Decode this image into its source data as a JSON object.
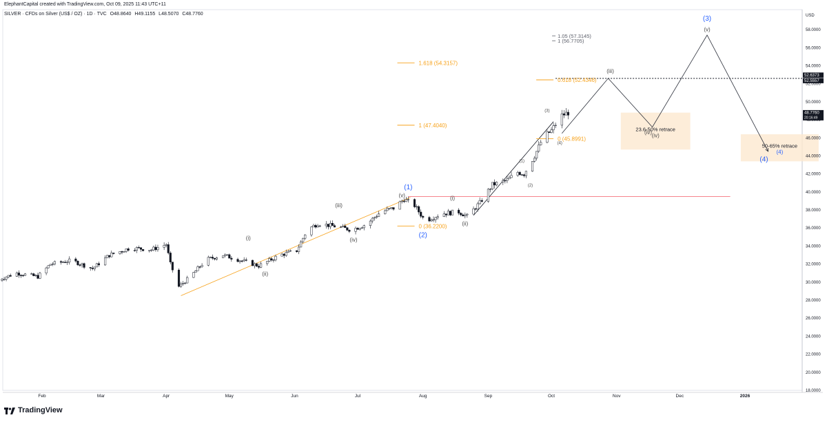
{
  "header": {
    "credit": "ElephantCapital created with TradingView.com, Oct 09, 2025 11:43 UTC+11",
    "symbol": "SILVER · CFDs on Silver (US$ / OZ) · 1D · TVC",
    "open": "O48.8640",
    "high": "H49.1155",
    "low": "L48.5070",
    "close": "C48.7760"
  },
  "footer": {
    "brand": "TradingView"
  },
  "colors": {
    "accent_blue": "#2962ff",
    "fib_orange": "#f7a21b",
    "resistance_red": "#f23645",
    "retrace_box": "#fde9cf"
  },
  "chart_data": {
    "type": "candlestick",
    "currency": "USD",
    "y_range": [
      18,
      59
    ],
    "y_ticks": [
      "58.0000",
      "56.0000",
      "54.0000",
      "52.0000",
      "50.0000",
      "48.0000",
      "46.0000",
      "44.0000",
      "42.0000",
      "40.0000",
      "38.0000",
      "36.0000",
      "34.0000",
      "32.0000",
      "30.0000",
      "28.0000",
      "26.0000",
      "24.0000",
      "22.0000",
      "20.0000",
      "18.0000"
    ],
    "x_ticks": [
      {
        "label": "Feb",
        "date": "2025-02-01"
      },
      {
        "label": "Mar",
        "date": "2025-03-01"
      },
      {
        "label": "Apr",
        "date": "2025-04-01"
      },
      {
        "label": "May",
        "date": "2025-05-01"
      },
      {
        "label": "Jun",
        "date": "2025-06-01"
      },
      {
        "label": "Jul",
        "date": "2025-07-01"
      },
      {
        "label": "Aug",
        "date": "2025-08-01"
      },
      {
        "label": "Sep",
        "date": "2025-09-01"
      },
      {
        "label": "Oct",
        "date": "2025-10-01"
      },
      {
        "label": "Nov",
        "date": "2025-11-01"
      },
      {
        "label": "Dec",
        "date": "2025-12-01"
      },
      {
        "label": "2026",
        "date": "2026-01-01"
      }
    ],
    "price_path": [
      [
        "2025-01-10",
        30.2
      ],
      [
        "2025-01-20",
        31.0
      ],
      [
        "2025-01-30",
        30.6
      ],
      [
        "2025-02-05",
        32.0
      ],
      [
        "2025-02-15",
        32.4
      ],
      [
        "2025-02-25",
        31.5
      ],
      [
        "2025-03-05",
        33.0
      ],
      [
        "2025-03-15",
        33.8
      ],
      [
        "2025-03-25",
        33.6
      ],
      [
        "2025-04-01",
        34.2
      ],
      [
        "2025-04-03",
        32.0
      ],
      [
        "2025-04-07",
        29.5
      ],
      [
        "2025-04-12",
        30.5
      ],
      [
        "2025-04-20",
        32.5
      ],
      [
        "2025-04-28",
        33.0
      ],
      [
        "2025-05-05",
        32.5
      ],
      [
        "2025-05-15",
        31.8
      ],
      [
        "2025-05-25",
        33.0
      ],
      [
        "2025-06-02",
        33.5
      ],
      [
        "2025-06-07",
        35.8
      ],
      [
        "2025-06-12",
        36.5
      ],
      [
        "2025-06-20",
        36.2
      ],
      [
        "2025-06-28",
        35.8
      ],
      [
        "2025-07-05",
        36.4
      ],
      [
        "2025-07-12",
        37.8
      ],
      [
        "2025-07-18",
        38.2
      ],
      [
        "2025-07-23",
        39.2
      ],
      [
        "2025-07-28",
        38.5
      ],
      [
        "2025-08-02",
        36.8
      ],
      [
        "2025-08-10",
        37.6
      ],
      [
        "2025-08-18",
        37.8
      ],
      [
        "2025-08-22",
        37.3
      ],
      [
        "2025-08-28",
        38.8
      ],
      [
        "2025-09-03",
        40.8
      ],
      [
        "2025-09-10",
        41.3
      ],
      [
        "2025-09-15",
        42.2
      ],
      [
        "2025-09-18",
        42.0
      ],
      [
        "2025-09-23",
        44.0
      ],
      [
        "2025-09-27",
        46.0
      ],
      [
        "2025-10-01",
        46.8
      ],
      [
        "2025-10-03",
        47.5
      ],
      [
        "2025-10-06",
        48.5
      ],
      [
        "2025-10-09",
        48.8
      ]
    ],
    "last_price": "48.7760",
    "countdown": "20:16:49",
    "price_tags": [
      {
        "value": 52.6373,
        "label": "52.6373"
      },
      {
        "value": 52.5557,
        "label": "52.5557"
      }
    ],
    "resistance_line": {
      "value": 39.5,
      "from": "2025-07-25",
      "to": "2025-12-25"
    },
    "dotted_line": {
      "value": 52.6
    },
    "projection": [
      [
        "2025-10-06",
        46.5
      ],
      [
        "2025-10-28",
        52.6
      ],
      [
        "2025-11-18",
        47.2
      ],
      [
        "2025-12-14",
        57.4
      ],
      [
        "2026-01-12",
        44.5
      ]
    ],
    "trend_lines": [
      {
        "from": [
          "2025-04-08",
          28.5
        ],
        "to": [
          "2025-07-26",
          39.4
        ]
      },
      {
        "from": [
          "2025-08-25",
          37.4
        ],
        "to": [
          "2025-10-02",
          47.8
        ]
      }
    ],
    "fib_levels": [
      {
        "label": "1.618 (54.3157)",
        "value": 54.3157,
        "x": "2025-07-28",
        "color": "orange"
      },
      {
        "label": "1 (47.4040)",
        "value": 47.404,
        "x": "2025-07-28",
        "color": "orange"
      },
      {
        "label": "0 (36.2200)",
        "value": 36.22,
        "x": "2025-07-28",
        "color": "orange"
      },
      {
        "label": "0.618 (52.4346)",
        "value": 52.4346,
        "x": "2025-10-02",
        "color": "orange"
      },
      {
        "label": "0 (45.8991)",
        "value": 45.8991,
        "x": "2025-10-02",
        "color": "orange"
      },
      {
        "label": "1.05 (57.3145)",
        "value": 57.3145,
        "x": "2025-10-02",
        "color": "grey"
      },
      {
        "label": "1 (56.7705)",
        "value": 56.7705,
        "x": "2025-10-02",
        "color": "grey"
      }
    ],
    "wave_labels": [
      {
        "text": "(1)",
        "date": "2025-07-25",
        "price": 40.3,
        "style": "blue"
      },
      {
        "text": "(2)",
        "date": "2025-08-01",
        "price": 35.0,
        "style": "blue"
      },
      {
        "text": "(3)",
        "date": "2025-12-14",
        "price": 59.0,
        "style": "blue"
      },
      {
        "text": "(4)",
        "date": "2026-01-10",
        "price": 43.4,
        "style": "blue"
      },
      {
        "text": "(i)",
        "date": "2025-05-10",
        "price": 34.7,
        "style": "grey"
      },
      {
        "text": "(ii)",
        "date": "2025-05-18",
        "price": 30.7,
        "style": "grey"
      },
      {
        "text": "(iii)",
        "date": "2025-06-22",
        "price": 38.3,
        "style": "grey"
      },
      {
        "text": "(iv)",
        "date": "2025-06-29",
        "price": 34.5,
        "style": "grey"
      },
      {
        "text": "(v)",
        "date": "2025-07-22",
        "price": 39.4,
        "style": "grey"
      },
      {
        "text": "(i)",
        "date": "2025-08-15",
        "price": 39.1,
        "style": "grey"
      },
      {
        "text": "(ii)",
        "date": "2025-08-21",
        "price": 36.3,
        "style": "grey"
      },
      {
        "text": "(iii)",
        "date": "2025-10-29",
        "price": 53.2,
        "style": "grey"
      },
      {
        "text": "(iv)",
        "date": "2025-11-16",
        "price": 46.4,
        "style": "grey"
      },
      {
        "text": "(v)",
        "date": "2025-12-14",
        "price": 57.8,
        "style": "grey"
      },
      {
        "text": "(1)",
        "date": "2025-09-17",
        "price": 43.3,
        "style": "small"
      },
      {
        "text": "(2)",
        "date": "2025-09-21",
        "price": 40.6,
        "style": "small"
      },
      {
        "text": "(3)",
        "date": "2025-09-29",
        "price": 48.9,
        "style": "small"
      },
      {
        "text": "(4)",
        "date": "2025-10-05",
        "price": 45.3,
        "style": "small"
      }
    ],
    "retrace_zones": [
      {
        "label": "23.6-50% retrace",
        "sublabel": "(iv)",
        "from": "2025-11-03",
        "to": "2025-12-06",
        "top": 48.8,
        "bottom": 44.7
      },
      {
        "label": "50-65% retrace",
        "sublabel": "(4)",
        "from": "2025-12-30",
        "to": "2026-02-05",
        "top": 46.4,
        "bottom": 43.4
      }
    ]
  }
}
